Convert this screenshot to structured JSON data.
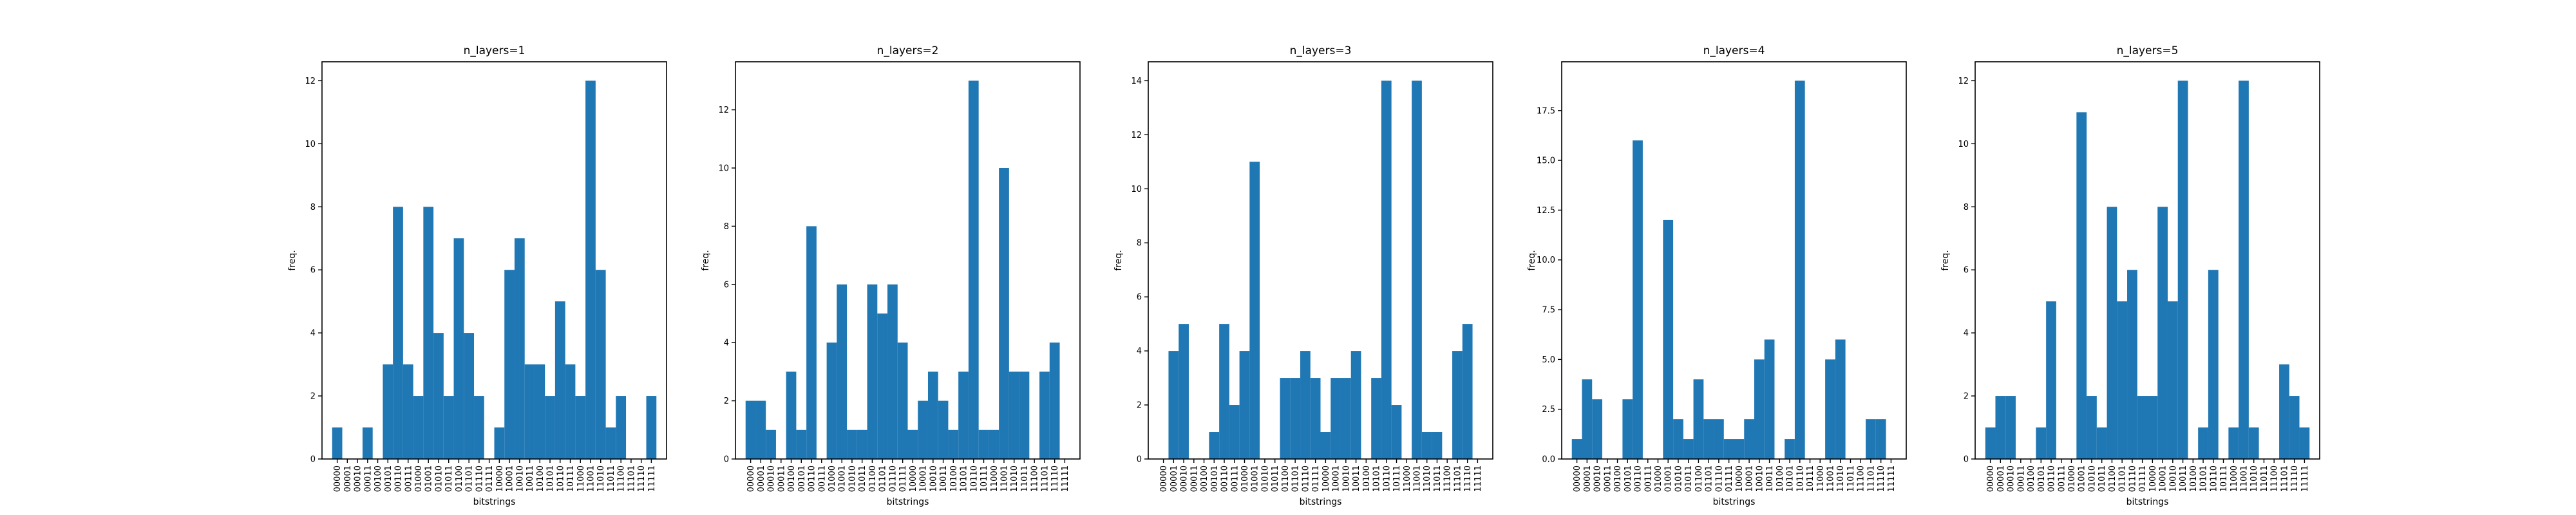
{
  "bar_color": "#1f77b4",
  "categories": [
    "00000",
    "00001",
    "00010",
    "00011",
    "00100",
    "00101",
    "00110",
    "00111",
    "01000",
    "01001",
    "01010",
    "01011",
    "01100",
    "01101",
    "01110",
    "01111",
    "10000",
    "10001",
    "10010",
    "10011",
    "10100",
    "10101",
    "10110",
    "10111",
    "11000",
    "11001",
    "11010",
    "11011",
    "11100",
    "11101",
    "11110",
    "11111"
  ],
  "chart_data": [
    {
      "type": "bar",
      "title": "n_layers=1",
      "xlabel": "bitstrings",
      "ylabel": "freq.",
      "ylim": [
        0,
        12.6
      ],
      "yticks": [
        0,
        2,
        4,
        6,
        8,
        10,
        12
      ],
      "values": [
        1,
        0,
        0,
        1,
        0,
        3,
        8,
        3,
        2,
        8,
        4,
        2,
        7,
        4,
        2,
        0,
        1,
        6,
        7,
        3,
        3,
        2,
        5,
        3,
        2,
        12,
        6,
        1,
        2,
        0,
        0,
        2
      ],
      "grid": false,
      "legend": "none"
    },
    {
      "type": "bar",
      "title": "n_layers=2",
      "xlabel": "bitstrings",
      "ylabel": "freq.",
      "ylim": [
        0,
        13.65
      ],
      "yticks": [
        0,
        2,
        4,
        6,
        8,
        10,
        12
      ],
      "values": [
        2,
        2,
        1,
        0,
        3,
        1,
        8,
        0,
        4,
        6,
        1,
        1,
        6,
        5,
        6,
        4,
        1,
        2,
        3,
        2,
        1,
        3,
        13,
        1,
        1,
        10,
        3,
        3,
        0,
        3,
        4,
        0
      ],
      "grid": false,
      "legend": "none"
    },
    {
      "type": "bar",
      "title": "n_layers=3",
      "xlabel": "bitstrings",
      "ylabel": "freq.",
      "ylim": [
        0,
        14.7
      ],
      "yticks": [
        0,
        2,
        4,
        6,
        8,
        10,
        12,
        14
      ],
      "values": [
        0,
        4,
        5,
        0,
        0,
        1,
        5,
        2,
        4,
        11,
        0,
        0,
        3,
        3,
        4,
        3,
        1,
        3,
        3,
        4,
        0,
        3,
        14,
        2,
        0,
        14,
        1,
        1,
        0,
        4,
        5,
        0
      ],
      "grid": false,
      "legend": "none"
    },
    {
      "type": "bar",
      "title": "n_layers=4",
      "xlabel": "bitstrings",
      "ylabel": "freq.",
      "ylim": [
        0,
        19.95
      ],
      "yticks": [
        0.0,
        2.5,
        5.0,
        7.5,
        10.0,
        12.5,
        15.0,
        17.5
      ],
      "ytick_labels": [
        "0.0",
        "2.5",
        "5.0",
        "7.5",
        "10.0",
        "12.5",
        "15.0",
        "17.5"
      ],
      "values": [
        1,
        4,
        3,
        0,
        0,
        3,
        16,
        0,
        0,
        12,
        2,
        1,
        4,
        2,
        2,
        1,
        1,
        2,
        5,
        6,
        0,
        1,
        19,
        0,
        0,
        5,
        6,
        0,
        0,
        2,
        2,
        0
      ],
      "grid": false,
      "legend": "none"
    },
    {
      "type": "bar",
      "title": "n_layers=5",
      "xlabel": "bitstrings",
      "ylabel": "freq.",
      "ylim": [
        0,
        12.6
      ],
      "yticks": [
        0,
        2,
        4,
        6,
        8,
        10,
        12
      ],
      "values": [
        1,
        2,
        2,
        0,
        0,
        1,
        5,
        0,
        0,
        11,
        2,
        1,
        8,
        5,
        6,
        2,
        2,
        8,
        5,
        12,
        0,
        1,
        6,
        0,
        1,
        12,
        1,
        0,
        0,
        3,
        2,
        1
      ],
      "grid": false,
      "legend": "none"
    }
  ]
}
